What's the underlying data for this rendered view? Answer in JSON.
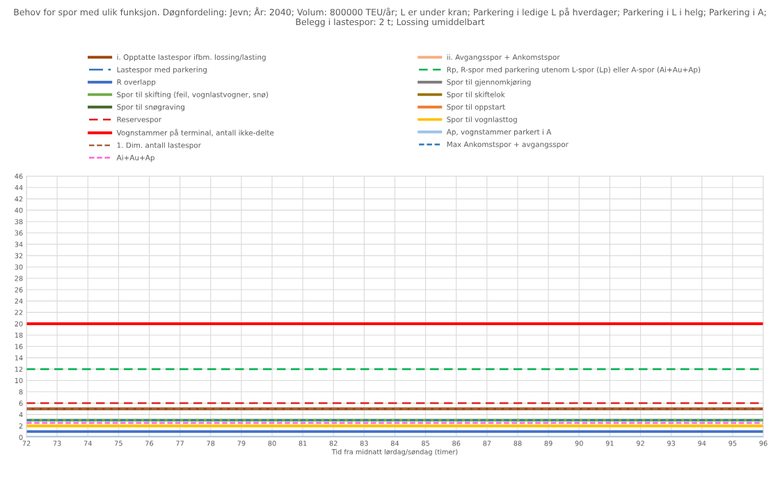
{
  "chart_data": {
    "type": "line",
    "title": "Behov for spor med ulik funksjon. Døgnfordeling: Jevn; År: 2040; Volum: 800000 TEU/år; L er under kran; Parkering i ledige L på hverdager; Parkering i L i helg; Parkering i A; Belegg i lastespor: 2 t; Lossing umiddelbart",
    "xlabel": "Tid fra midnatt lørdag/søndag (timer)",
    "x": [
      72,
      96
    ],
    "xlim": [
      72,
      96
    ],
    "xticks": [
      72,
      73,
      74,
      75,
      76,
      77,
      78,
      79,
      80,
      81,
      82,
      83,
      84,
      85,
      86,
      87,
      88,
      89,
      90,
      91,
      92,
      93,
      94,
      95,
      96
    ],
    "ylim": [
      0,
      46
    ],
    "yticks": [
      0,
      2,
      4,
      6,
      8,
      10,
      12,
      14,
      16,
      18,
      20,
      22,
      24,
      26,
      28,
      30,
      32,
      34,
      36,
      38,
      40,
      42,
      44,
      46
    ],
    "grid": true,
    "legend": "top",
    "marker": "none",
    "series": [
      {
        "name": "i. Opptatte lastespor ifbm. lossing/lasting",
        "color": "#9e480e",
        "values": [
          5,
          5
        ]
      },
      {
        "name": "ii. Avgangsspor + Ankomstspor",
        "color": "#f4b183",
        "values": [
          null,
          null
        ]
      },
      {
        "name": "Lastespor med parkering",
        "color": "#2e75b6",
        "line_style": "dashdot",
        "values": [
          null,
          null
        ]
      },
      {
        "name": "Rp, R-spor med parkering utenom L-spor (Lp) eller A-spor (Ai+Au+Ap)",
        "color": "#00b050",
        "line_style": "dashed",
        "values": [
          12,
          12
        ]
      },
      {
        "name": "R overlapp",
        "color": "#4472c4",
        "values": [
          1,
          1
        ]
      },
      {
        "name": "Spor til gjennomkjøring",
        "color": "#7f7f7f",
        "values": [
          null,
          null
        ]
      },
      {
        "name": "Spor til skifting (feil, vognlastvogner, snø)",
        "color": "#70ad47",
        "values": [
          3,
          3
        ]
      },
      {
        "name": "Spor til skiftelok",
        "color": "#997300",
        "values": [
          null,
          null
        ]
      },
      {
        "name": "Spor til snøgraving",
        "color": "#43682b",
        "values": [
          null,
          null
        ]
      },
      {
        "name": "Spor til oppstart",
        "color": "#ed7d31",
        "values": [
          null,
          null
        ]
      },
      {
        "name": "Reservespor",
        "color": "#e02020",
        "line_style": "dashed",
        "values": [
          6,
          6
        ]
      },
      {
        "name": "Spor til vognlasttog",
        "color": "#ffc000",
        "values": [
          2,
          2
        ]
      },
      {
        "name": "Vognstammer på terminal, antall ikke-delte",
        "color": "#ff0000",
        "values": [
          20,
          20
        ]
      },
      {
        "name": "Ap, vognstammer parkert i A",
        "color": "#9dc3e6",
        "values": [
          0,
          0
        ]
      },
      {
        "name": "1. Dim. antall lastespor",
        "color": "#a5673f",
        "line_style": "dotted",
        "values": [
          5,
          5
        ]
      },
      {
        "name": "Max Ankomstspor + avgangsspor",
        "color": "#2e75b6",
        "line_style": "dotted",
        "values": [
          3,
          3
        ]
      },
      {
        "name": "Ai+Au+Ap",
        "color": "#ff66cc",
        "line_style": "dotted",
        "values": [
          2.5,
          2.5
        ]
      }
    ]
  }
}
